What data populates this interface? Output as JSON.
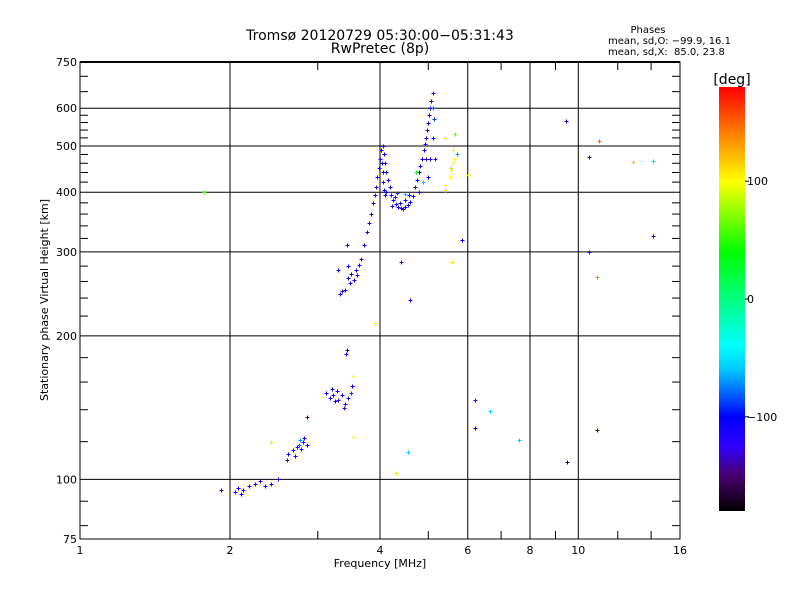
{
  "chart_data": {
    "type": "scatter",
    "title": "Tromsø 20120729 05:30:00−05:31:43",
    "subtitle": "RwPretec (8p)",
    "xlabel": "Frequency [MHz]",
    "ylabel": "Stationary phase Virtual Height [km]",
    "xscale": "log",
    "yscale": "log",
    "xlim": [
      1,
      16
    ],
    "ylim": [
      75,
      750
    ],
    "grid": true,
    "x_ticks": [
      1,
      2,
      4,
      6,
      8,
      10,
      16
    ],
    "x_tick_labels": [
      "1",
      "2",
      "4",
      "6",
      "8",
      "10",
      "16"
    ],
    "x_grid": [
      2,
      4,
      6,
      8,
      10
    ],
    "x_minor_ticks": [
      3,
      5,
      7,
      9,
      12,
      14
    ],
    "y_ticks": [
      75,
      100,
      200,
      300,
      400,
      500,
      600,
      750
    ],
    "y_tick_labels": [
      "75",
      "100",
      "200",
      "300",
      "400",
      "500",
      "600",
      "750"
    ],
    "y_grid": [
      100,
      200,
      300,
      400,
      500,
      600
    ],
    "y_minor_ticks": [
      80,
      90,
      120,
      140,
      160,
      180,
      220,
      240,
      260,
      280,
      320,
      340,
      360,
      380,
      420,
      440,
      460,
      480,
      520,
      540,
      560,
      580,
      650,
      700
    ],
    "stats": {
      "heading": "Phases",
      "line_o": "mean, sd,O: −99.9, 16.1",
      "line_x": "mean, sd,X:  85.0, 23.8"
    },
    "colorbar": {
      "label": "[deg]",
      "range": [
        -180,
        180
      ],
      "tick_values": [
        100,
        0,
        -100
      ],
      "tick_labels": [
        "100",
        "0",
        "−100"
      ],
      "stops": [
        {
          "value": -180,
          "color": "#000000"
        },
        {
          "value": -150,
          "color": "#4a0070"
        },
        {
          "value": -125,
          "color": "#3000ff"
        },
        {
          "value": -100,
          "color": "#0000ff"
        },
        {
          "value": -60,
          "color": "#00c8ff"
        },
        {
          "value": -40,
          "color": "#00ffff"
        },
        {
          "value": 0,
          "color": "#00ff80"
        },
        {
          "value": 40,
          "color": "#00ff00"
        },
        {
          "value": 100,
          "color": "#ffff00"
        },
        {
          "value": 140,
          "color": "#ff8000"
        },
        {
          "value": 180,
          "color": "#ff0000"
        }
      ]
    },
    "series": [
      {
        "name": "echoes [frequency MHz, height km, phase deg]",
        "points": [
          [
            1.92,
            95,
            -130
          ],
          [
            2.05,
            94,
            -110
          ],
          [
            2.08,
            96,
            -110
          ],
          [
            2.12,
            95,
            -120
          ],
          [
            2.18,
            97,
            -110
          ],
          [
            2.25,
            98,
            -110
          ],
          [
            2.3,
            99,
            -130
          ],
          [
            2.35,
            97,
            -110
          ],
          [
            2.42,
            98,
            -110
          ],
          [
            2.5,
            100,
            -110
          ],
          [
            2.1,
            93,
            -110
          ],
          [
            2.62,
            113,
            -110
          ],
          [
            2.68,
            115,
            -110
          ],
          [
            2.72,
            117,
            -120
          ],
          [
            2.75,
            118,
            -80
          ],
          [
            2.78,
            116,
            -110
          ],
          [
            2.8,
            120,
            -130
          ],
          [
            2.82,
            122,
            -110
          ],
          [
            2.7,
            112,
            -110
          ],
          [
            2.76,
            121,
            -70
          ],
          [
            2.85,
            118,
            -110
          ],
          [
            2.6,
            110,
            -130
          ],
          [
            3.12,
            152,
            -110
          ],
          [
            3.18,
            148,
            -110
          ],
          [
            3.22,
            150,
            -110
          ],
          [
            3.25,
            146,
            -100
          ],
          [
            3.28,
            153,
            -110
          ],
          [
            3.3,
            147,
            -130
          ],
          [
            3.35,
            150,
            -110
          ],
          [
            3.4,
            144,
            -120
          ],
          [
            3.45,
            148,
            -110
          ],
          [
            3.5,
            152,
            -90
          ],
          [
            3.52,
            157,
            -110
          ],
          [
            3.38,
            141,
            -130
          ],
          [
            3.2,
            155,
            -110
          ],
          [
            3.42,
            183,
            -130
          ],
          [
            3.44,
            187,
            -110
          ],
          [
            3.3,
            275,
            -110
          ],
          [
            3.32,
            245,
            -110
          ],
          [
            3.36,
            248,
            -120
          ],
          [
            3.4,
            250,
            -110
          ],
          [
            3.43,
            310,
            -110
          ],
          [
            3.45,
            265,
            -110
          ],
          [
            3.48,
            258,
            -110
          ],
          [
            3.5,
            270,
            -100
          ],
          [
            3.55,
            262,
            -110
          ],
          [
            3.58,
            275,
            -110
          ],
          [
            3.6,
            268,
            -130
          ],
          [
            3.63,
            282,
            -110
          ],
          [
            3.66,
            290,
            -110
          ],
          [
            3.45,
            280,
            -110
          ],
          [
            3.72,
            310,
            -110
          ],
          [
            3.76,
            330,
            -110
          ],
          [
            3.8,
            345,
            -110
          ],
          [
            3.84,
            360,
            -110
          ],
          [
            3.88,
            380,
            -110
          ],
          [
            3.9,
            395,
            -110
          ],
          [
            3.93,
            410,
            -120
          ],
          [
            3.95,
            430,
            -110
          ],
          [
            3.98,
            450,
            -110
          ],
          [
            4.0,
            470,
            -110
          ],
          [
            4.02,
            490,
            -110
          ],
          [
            4.05,
            500,
            -110
          ],
          [
            4.03,
            460,
            -100
          ],
          [
            4.05,
            440,
            -110
          ],
          [
            4.06,
            420,
            -130
          ],
          [
            4.08,
            405,
            -110
          ],
          [
            4.1,
            395,
            -110
          ],
          [
            4.12,
            400,
            -110
          ],
          [
            4.08,
            480,
            -110
          ],
          [
            4.1,
            460,
            -110
          ],
          [
            4.12,
            440,
            -110
          ],
          [
            4.15,
            425,
            -110
          ],
          [
            4.18,
            410,
            -110
          ],
          [
            4.2,
            395,
            -110
          ],
          [
            4.25,
            385,
            -110
          ],
          [
            4.3,
            378,
            -110
          ],
          [
            4.35,
            372,
            -120
          ],
          [
            4.4,
            370,
            -110
          ],
          [
            4.45,
            368,
            -110
          ],
          [
            4.5,
            372,
            -110
          ],
          [
            4.55,
            376,
            -110
          ],
          [
            4.6,
            382,
            -110
          ],
          [
            4.65,
            392,
            -110
          ],
          [
            4.28,
            390,
            -130
          ],
          [
            4.38,
            380,
            -110
          ],
          [
            4.48,
            385,
            -110
          ],
          [
            4.22,
            375,
            -110
          ],
          [
            4.33,
            398,
            -90
          ],
          [
            4.58,
            394,
            -110
          ],
          [
            4.5,
            396,
            -60
          ],
          [
            4.7,
            410,
            -110
          ],
          [
            4.75,
            425,
            -110
          ],
          [
            4.78,
            440,
            -110
          ],
          [
            4.82,
            455,
            -110
          ],
          [
            4.85,
            470,
            -110
          ],
          [
            4.9,
            490,
            -110
          ],
          [
            4.92,
            505,
            -110
          ],
          [
            4.95,
            520,
            -110
          ],
          [
            4.98,
            540,
            -110
          ],
          [
            5.0,
            560,
            -110
          ],
          [
            5.02,
            580,
            -110
          ],
          [
            5.05,
            600,
            -110
          ],
          [
            5.07,
            620,
            -110
          ],
          [
            5.1,
            645,
            -120
          ],
          [
            5.12,
            600,
            -80
          ],
          [
            5.14,
            570,
            -90
          ],
          [
            5.05,
            470,
            -110
          ],
          [
            5.0,
            430,
            -110
          ],
          [
            4.88,
            420,
            -60
          ],
          [
            5.1,
            520,
            -110
          ],
          [
            4.95,
            470,
            -130
          ],
          [
            4.8,
            400,
            -110
          ],
          [
            4.72,
            440,
            40
          ],
          [
            5.15,
            470,
            -110
          ],
          [
            5.4,
            405,
            110
          ],
          [
            5.4,
            415,
            100
          ],
          [
            5.52,
            430,
            100
          ],
          [
            5.55,
            445,
            95
          ],
          [
            5.6,
            460,
            100
          ],
          [
            5.63,
            470,
            100
          ],
          [
            5.6,
            490,
            95
          ],
          [
            5.7,
            480,
            -70
          ],
          [
            5.55,
            450,
            80
          ],
          [
            5.4,
            520,
            110
          ],
          [
            5.66,
            530,
            60
          ],
          [
            1.77,
            400,
            60
          ],
          [
            2.42,
            120,
            90
          ],
          [
            2.85,
            135,
            -150
          ],
          [
            3.53,
            165,
            100
          ],
          [
            3.53,
            123,
            100
          ],
          [
            3.91,
            213,
            100
          ],
          [
            4.31,
            103,
            110
          ],
          [
            4.55,
            114,
            -60
          ],
          [
            4.4,
            285,
            -130
          ],
          [
            4.59,
            238,
            -110
          ],
          [
            5.83,
            318,
            -110
          ],
          [
            5.57,
            285,
            110
          ],
          [
            6.0,
            435,
            100
          ],
          [
            6.2,
            147,
            -125
          ],
          [
            6.2,
            128,
            -100
          ],
          [
            6.65,
            139,
            -55
          ],
          [
            7.6,
            121,
            -60
          ],
          [
            9.48,
            109,
            -160
          ],
          [
            9.45,
            563,
            -110
          ],
          [
            10.5,
            475,
            -135
          ],
          [
            11.0,
            511,
            150
          ],
          [
            10.5,
            300,
            -120
          ],
          [
            10.9,
            266,
            140
          ],
          [
            10.9,
            127,
            -160
          ],
          [
            12.9,
            462,
            120
          ],
          [
            14.1,
            466,
            -55
          ],
          [
            14.1,
            324,
            -130
          ]
        ]
      }
    ]
  }
}
